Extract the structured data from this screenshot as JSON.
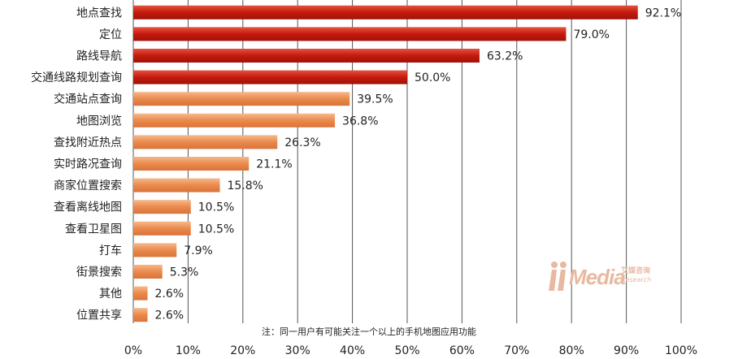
{
  "chart_data": {
    "type": "bar",
    "orientation": "horizontal",
    "categories": [
      "地点查找",
      "定位",
      "路线导航",
      "交通线路规划查询",
      "交通站点查询",
      "地图浏览",
      "查找附近热点",
      "实时路况查询",
      "商家位置搜索",
      "查看离线地图",
      "查看卫星图",
      "打车",
      "街景搜索",
      "其他",
      "位置共享"
    ],
    "values": [
      92.1,
      79.0,
      63.2,
      50.0,
      39.5,
      36.8,
      26.3,
      21.1,
      15.8,
      10.5,
      10.5,
      7.9,
      5.3,
      2.6,
      2.6
    ],
    "value_labels": [
      "92.1%",
      "79.0%",
      "63.2%",
      "50.0%",
      "39.5%",
      "36.8%",
      "26.3%",
      "21.1%",
      "15.8%",
      "10.5%",
      "10.5%",
      "7.9%",
      "5.3%",
      "2.6%",
      "2.6%"
    ],
    "xlim": [
      0,
      100
    ],
    "x_ticks": [
      "0%",
      "10%",
      "20%",
      "30%",
      "40%",
      "50%",
      "60%",
      "70%",
      "80%",
      "90%",
      "100%"
    ],
    "grid": "vertical",
    "colors": {
      "highlight": "#c41a0e",
      "normal": "#ea8a4c",
      "grid": "#555555"
    },
    "highlight_count": 4,
    "note": "注：同一用户有可能关注一个以上的手机地图应用功能"
  },
  "logo": {
    "main": "Media",
    "cn": "艾媒咨询",
    "en": "Research"
  }
}
